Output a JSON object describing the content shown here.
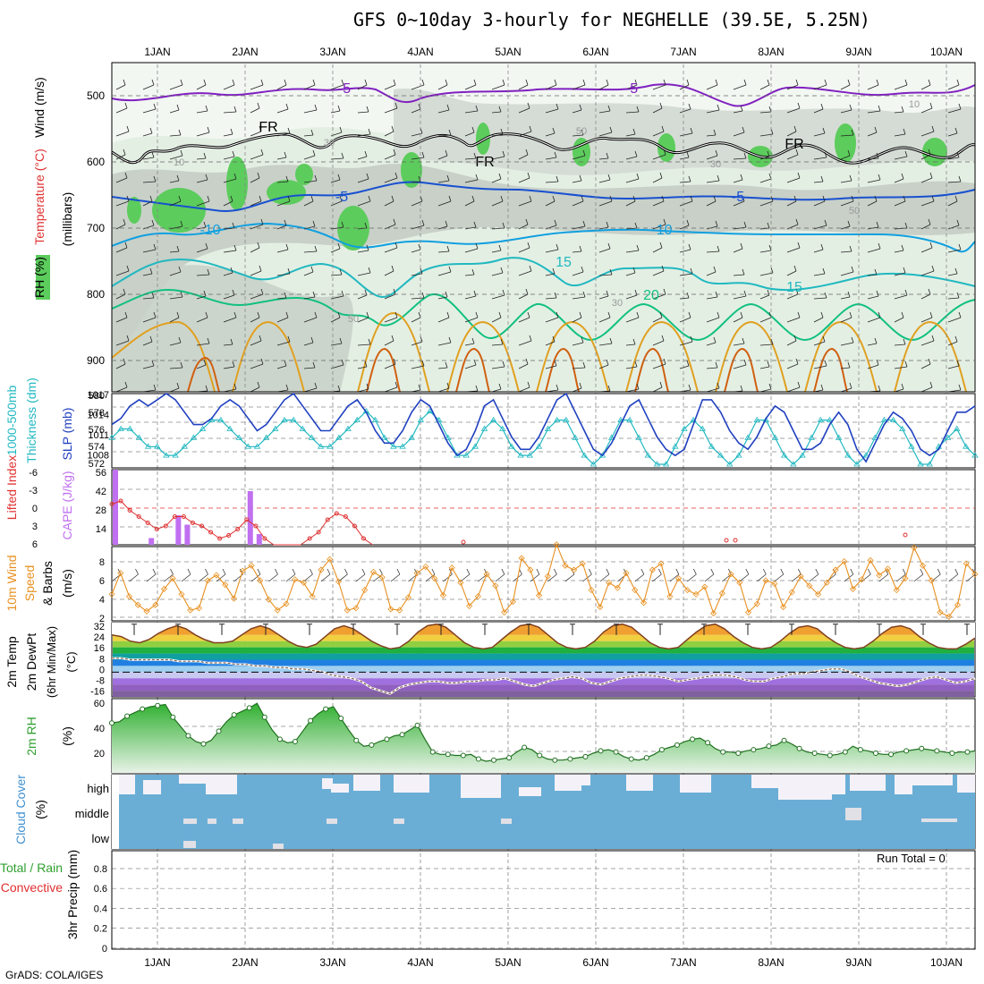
{
  "title": "GFS 0~10day 3-hourly for NEGHELLE (39.5E, 5.25N)",
  "credit": "GrADS: COLA/IGES",
  "days": [
    "1JAN",
    "2JAN",
    "3JAN",
    "4JAN",
    "5JAN",
    "6JAN",
    "7JAN",
    "8JAN",
    "9JAN",
    "10JAN"
  ],
  "colors": {
    "rh_green": "#5ccc5c",
    "rh_gray": "#c8d0c8",
    "temp_purple": "#8020c0",
    "temp_blue": "#1850d0",
    "temp_lblue": "#10a0e0",
    "temp_teal": "#10b8a8",
    "temp_green": "#10c080",
    "temp_orange": "#e0a020",
    "slp_blue": "#2040c0",
    "thick_cyan": "#20b8c0",
    "cape_purple": "#c070f0",
    "li_red": "#e03030",
    "wind_orange": "#e89020",
    "rh2m_green": "#30a030",
    "cloud_blue": "#6aaed6",
    "cloud_white": "#f4f2f8"
  },
  "panels": {
    "upper": {
      "ylabels": [
        "RH (%)",
        "Temperature (°C)",
        "Wind (m/s)"
      ],
      "sublabel": "(millibars)",
      "yticks": [
        "500",
        "600",
        "700",
        "800",
        "900"
      ],
      "contours": [
        "-5",
        "-5",
        "FR",
        "FR",
        "FR",
        "-5",
        "-5",
        "-10",
        "-10",
        "15",
        "20",
        "15",
        "10",
        "30",
        "50",
        "30",
        "50",
        "50",
        "30",
        "10"
      ]
    },
    "slp": {
      "label1": "1000-500mb",
      "label2": "Thickness (dm)",
      "label3": "SLP (mb)",
      "left_ticks": [
        "580",
        "578",
        "576",
        "574",
        "572"
      ],
      "right_ticks": [
        "1017",
        "1014",
        "1011",
        "1008"
      ]
    },
    "cape": {
      "label1": "Lifted Index",
      "label2": "CAPE (J/kg)",
      "left_ticks": [
        "-6",
        "-3",
        "0",
        "3",
        "6"
      ],
      "right_ticks": [
        "56",
        "42",
        "28",
        "14"
      ]
    },
    "wind10": {
      "label1": "10m Wind",
      "label2": "Speed",
      "label3": "& Barbs",
      "units": "(m/s)",
      "yticks": [
        "8",
        "6",
        "4",
        "2"
      ]
    },
    "temp2m": {
      "label1": "2m Temp",
      "label2": "2m DewPt",
      "label3": "(6hr Min/Max)",
      "units": "(°C)",
      "yticks": [
        "32",
        "24",
        "16",
        "8",
        "0",
        "-8",
        "-16"
      ]
    },
    "rh2m": {
      "label": "2m RH",
      "units": "(%)",
      "yticks": [
        "60",
        "40",
        "20"
      ]
    },
    "cloud": {
      "label": "Cloud Cover",
      "units": "(%)",
      "levels": [
        "high",
        "middle",
        "low"
      ]
    },
    "precip": {
      "label1": "Total / Rain",
      "label2": "Convective",
      "label3": "3hr Precip (mm)",
      "yticks": [
        "0.8",
        "0.6",
        "0.4",
        "0.2",
        "0"
      ],
      "run_total": "Run Total = 0"
    }
  },
  "chart_data": [
    {
      "type": "line",
      "name_hint": "slp",
      "x_unit": "3-hourly steps from 31 Dec 12Z",
      "series": [
        {
          "name": "SLP (mb)",
          "values": [
            1012,
            1013,
            1015,
            1016,
            1015,
            1016,
            1017,
            1016,
            1014,
            1012,
            1012,
            1013,
            1015,
            1016,
            1015,
            1013,
            1011,
            1012,
            1014,
            1016,
            1017,
            1015,
            1013,
            1011,
            1011,
            1013,
            1015,
            1016,
            1014,
            1011,
            1009,
            1009,
            1011,
            1014,
            1016,
            1015,
            1012,
            1009,
            1007,
            1008,
            1011,
            1015,
            1016,
            1013,
            1010,
            1008,
            1008,
            1010,
            1013,
            1016,
            1017,
            1014,
            1011,
            1008,
            1007,
            1009,
            1012,
            1015,
            1016,
            1013,
            1010,
            1008,
            1007,
            1008,
            1012,
            1016,
            1016,
            1014,
            1011,
            1009,
            1008,
            1010,
            1013,
            1015,
            1014,
            1011,
            1008,
            1008,
            1009,
            1012,
            1014,
            1012,
            1008,
            1006,
            1009,
            1012,
            1014,
            1013,
            1011,
            1008,
            1007,
            1008,
            1011,
            1014,
            1014,
            1015
          ]
        },
        {
          "name": "Thickness (dm)",
          "values": [
            575,
            576,
            576,
            575,
            574,
            574,
            573,
            573,
            574,
            575,
            576,
            577,
            577,
            576,
            575,
            574,
            574,
            575,
            576,
            577,
            577,
            576,
            575,
            574,
            574,
            575,
            576,
            577,
            578,
            577,
            575,
            574,
            574,
            575,
            577,
            578,
            577,
            575,
            573,
            573,
            574,
            576,
            577,
            576,
            574,
            573,
            573,
            574,
            576,
            577,
            577,
            575,
            573,
            572,
            573,
            575,
            577,
            577,
            575,
            573,
            572,
            572,
            574,
            576,
            577,
            576,
            574,
            573,
            572,
            573,
            575,
            577,
            577,
            575,
            573,
            572,
            573,
            575,
            577,
            577,
            575,
            573,
            572,
            573,
            575,
            577,
            577,
            576,
            574,
            572,
            572,
            574,
            575,
            576,
            574,
            573
          ]
        }
      ],
      "ylim_left": [
        572,
        580
      ],
      "ylim_right": [
        1005,
        1017
      ]
    },
    {
      "type": "bar",
      "name_hint": "cape",
      "series": [
        {
          "name": "CAPE (J/kg)",
          "values": [
            {
              "x": 0,
              "y": 56
            },
            {
              "x": 4,
              "y": 5
            },
            {
              "x": 7,
              "y": 22
            },
            {
              "x": 8,
              "y": 15
            },
            {
              "x": 15,
              "y": 40
            },
            {
              "x": 16,
              "y": 8
            }
          ]
        },
        {
          "name": "Lifted Index",
          "values": [
            -0.5,
            -1,
            0.5,
            1.5,
            2.5,
            3.5,
            3,
            1.5,
            1.5,
            2.5,
            3,
            4,
            5,
            4.5,
            3.5,
            2,
            3,
            5,
            6,
            7,
            7,
            6,
            5,
            4,
            2,
            1,
            1.5,
            3,
            5,
            6
          ]
        }
      ],
      "ylim_left": [
        6,
        -6
      ],
      "ylim_right": [
        0,
        56
      ]
    },
    {
      "type": "line",
      "name_hint": "wind10",
      "series": [
        {
          "name": "10m Wind Speed (m/s)",
          "values": [
            4.5,
            6.5,
            4.3,
            3.5,
            2.9,
            3.5,
            5,
            6,
            4.5,
            3,
            3.2,
            5.8,
            6.3,
            5.4,
            4.1,
            6.7,
            7.2,
            5.8,
            4,
            3,
            3.6,
            5.9,
            5.6,
            4.3,
            6.8,
            7.8,
            5.7,
            3,
            3.2,
            4.9,
            6.6,
            6.1,
            3.1,
            3,
            4.2,
            6.5,
            7.1,
            6,
            4.4,
            7,
            5.6,
            3.4,
            4.3,
            6.4,
            5.3,
            2.8,
            3.8,
            7.9,
            6.8,
            4.4,
            6.2,
            9.2,
            7.2,
            6.8,
            7.4,
            4.9,
            3.3,
            5.6,
            5.1,
            6.5,
            4.9,
            3.7,
            6.8,
            7.4,
            4.3,
            6,
            4.9,
            4.5,
            5.2,
            2.7,
            4.6,
            6.4,
            5.6,
            2.8,
            3.6,
            5.8,
            5.5,
            3.3,
            4.7,
            6.2,
            5.3,
            4.5,
            5.6,
            6.8,
            7.6,
            5,
            5.9,
            7.7,
            6.3,
            6.9,
            4.9,
            6,
            8.9,
            7.2,
            5.8,
            2.8,
            2.4,
            3.5,
            7.4,
            6.4
          ]
        }
      ],
      "ylim": [
        2,
        9
      ]
    },
    {
      "type": "area",
      "name_hint": "temp2m",
      "series": [
        {
          "name": "2m Temp (°C)",
          "values": [
            24,
            23,
            20,
            19,
            21,
            25,
            28,
            30,
            28,
            24,
            21,
            19,
            19,
            20,
            24,
            28,
            30,
            28,
            24,
            20,
            17,
            16,
            18,
            23,
            28,
            30,
            28,
            24,
            20,
            17,
            15,
            16,
            20,
            26,
            30,
            31,
            29,
            24,
            19,
            16,
            15,
            16,
            21,
            26,
            30,
            31,
            29,
            24,
            19,
            16,
            15,
            16,
            20,
            26,
            30,
            31,
            29,
            24,
            19,
            16,
            15,
            16,
            21,
            26,
            30,
            31,
            28,
            23,
            19,
            16,
            15,
            16,
            20,
            25,
            29,
            30,
            28,
            23,
            19,
            16,
            15,
            16,
            20,
            25,
            29,
            30,
            28,
            23,
            19,
            16,
            15,
            15,
            18,
            22
          ]
        },
        {
          "name": "2m DewPt (°C)",
          "values": [
            9,
            9,
            8,
            8,
            8,
            8,
            8,
            7,
            7,
            7,
            6,
            6,
            6,
            5,
            5,
            4,
            4,
            3,
            3,
            2,
            2,
            1,
            0,
            -2,
            -3,
            -4,
            -6,
            -10,
            -12,
            -14,
            -10,
            -8,
            -7,
            -6,
            -6,
            -7,
            -7,
            -6,
            -6,
            -5,
            -5,
            -4,
            -6,
            -8,
            -9,
            -7,
            -5,
            -4,
            -3,
            -4,
            -7,
            -8,
            -6,
            -4,
            -3,
            -2,
            -2,
            -3,
            -4,
            -6,
            -5,
            -4,
            -3,
            -2,
            -2,
            -3,
            -5,
            -6,
            -6,
            -4,
            -3,
            -1,
            -1,
            0,
            1,
            2,
            2,
            0,
            -3,
            -5,
            -7,
            -8,
            -9,
            -8,
            -6,
            -4,
            -3,
            -5,
            -7,
            -6,
            -4
          ]
        }
      ],
      "ylim": [
        -16,
        32
      ]
    },
    {
      "type": "area",
      "name_hint": "rh2m",
      "series": [
        {
          "name": "2m RH (%)",
          "values": [
            43,
            44,
            49,
            52,
            55,
            57,
            58,
            59,
            48,
            40,
            32,
            27,
            25,
            28,
            36,
            44,
            50,
            53,
            56,
            60,
            48,
            37,
            29,
            26,
            27,
            36,
            45,
            51,
            55,
            57,
            47,
            37,
            28,
            23,
            24,
            27,
            29,
            32,
            33,
            37,
            41,
            29,
            18,
            16,
            16,
            15,
            15,
            16,
            12,
            10,
            11,
            12,
            13,
            18,
            22,
            20,
            15,
            12,
            11,
            11,
            12,
            13,
            14,
            17,
            19,
            20,
            18,
            14,
            12,
            11,
            13,
            16,
            20,
            22,
            24,
            27,
            29,
            30,
            26,
            21,
            18,
            18,
            17,
            19,
            20,
            21,
            23,
            24,
            28,
            25,
            21,
            18,
            17,
            16,
            15,
            16,
            18,
            23,
            20,
            19,
            17,
            16,
            16,
            18,
            19,
            20,
            21,
            20,
            19,
            18,
            17,
            18,
            18,
            19
          ]
        }
      ],
      "ylim": [
        0,
        60
      ]
    },
    {
      "type": "bar",
      "name_hint": "precip",
      "series": [
        {
          "name": "3hr Precip (mm)",
          "values": []
        }
      ],
      "ylim": [
        0,
        1
      ]
    }
  ]
}
